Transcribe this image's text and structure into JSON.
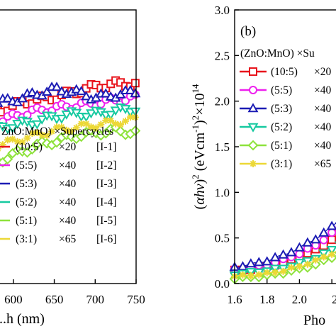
{
  "chart_data": [
    {
      "panel": "a",
      "type": "line",
      "xlabel": "...h (nm)",
      "x_ticks": [
        "600",
        "650",
        "700",
        "750"
      ],
      "x_ticks_partial": [
        "...0"
      ],
      "xlim": [
        575,
        750
      ],
      "ylim": [
        0,
        1
      ],
      "legend": {
        "header": "ZnO:MnO) ×Supercycles",
        "header_prefix": "(",
        "entries": [
          {
            "ratio": "(10:5)",
            "cycles": "×20",
            "label": "[I-1]",
            "color": "#e8141c",
            "marker": "square"
          },
          {
            "ratio": "(5:5)",
            "cycles": "×40",
            "label": "[I-2]",
            "color": "#ee1fee",
            "marker": "circle"
          },
          {
            "ratio": "(5:3)",
            "cycles": "×40",
            "label": "[I-3]",
            "color": "#1c1cb4",
            "marker": "triangle-up"
          },
          {
            "ratio": "(5:2)",
            "cycles": "×40",
            "label": "[I-4]",
            "color": "#16c9a0",
            "marker": "triangle-down"
          },
          {
            "ratio": "(5:1)",
            "cycles": "×40",
            "label": "[I-5]",
            "color": "#8ee23c",
            "marker": "diamond"
          },
          {
            "ratio": "(3:1)",
            "cycles": "×65",
            "label": "[I-6]",
            "color": "#ecd836",
            "marker": "star"
          }
        ]
      },
      "series": [
        {
          "name": "(10:5) ×20 [I-1]",
          "x": [
            575,
            600,
            625,
            650,
            675,
            700,
            725,
            750
          ],
          "y": [
            0.62,
            0.65,
            0.67,
            0.68,
            0.7,
            0.72,
            0.73,
            0.73
          ]
        },
        {
          "name": "(5:5) ×40 [I-2]",
          "x": [
            575,
            600,
            625,
            650,
            675,
            700,
            725,
            750
          ],
          "y": [
            0.59,
            0.61,
            0.63,
            0.64,
            0.65,
            0.66,
            0.67,
            0.68
          ]
        },
        {
          "name": "(5:3) ×40 [I-3]",
          "x": [
            575,
            600,
            625,
            650,
            675,
            700,
            725,
            750
          ],
          "y": [
            0.66,
            0.67,
            0.69,
            0.71,
            0.7,
            0.68,
            0.69,
            0.7
          ]
        },
        {
          "name": "(5:2) ×40 [I-4]",
          "x": [
            575,
            600,
            625,
            650,
            675,
            700,
            725,
            750
          ],
          "y": [
            0.56,
            0.58,
            0.59,
            0.61,
            0.62,
            0.62,
            0.63,
            0.64
          ]
        },
        {
          "name": "(5:1) ×40 [I-5]",
          "x": [
            575,
            600,
            625,
            650,
            675,
            700,
            725,
            750
          ],
          "y": [
            0.44,
            0.47,
            0.5,
            0.52,
            0.54,
            0.55,
            0.56,
            0.55
          ]
        },
        {
          "name": "(3:1) ×65 [I-6]",
          "x": [
            575,
            600,
            625,
            650,
            675,
            700,
            725,
            750
          ],
          "y": [
            0.5,
            0.52,
            0.54,
            0.56,
            0.57,
            0.58,
            0.59,
            0.6
          ]
        }
      ]
    },
    {
      "panel": "b",
      "panel_label": "(b)",
      "type": "line",
      "xlabel": "Pho",
      "ylabel_html": "(αhv)² (eVcm⁻¹)²×10¹⁴",
      "ylabel_parts": {
        "a": "(",
        "alpha": "α",
        "hv": "hν",
        "b": ")",
        "sup2": "2",
        "units": " (eVcm",
        "minus1": "-1",
        "c": ")",
        "sup2b": "2",
        "times": "×10",
        "exp": "14"
      },
      "x_ticks": [
        "1.6",
        "1.8",
        "2.0",
        "2.2"
      ],
      "y_ticks": [
        "0.0",
        "0.5",
        "1.0",
        "1.5",
        "2.0",
        "2.5",
        "3.0"
      ],
      "xlim": [
        1.6,
        2.3
      ],
      "ylim": [
        0,
        3.0
      ],
      "legend": {
        "header": "(ZnO:MnO) ×Su",
        "entries": [
          {
            "ratio": "(10:5)",
            "cycles": "×20",
            "color": "#e8141c",
            "marker": "square"
          },
          {
            "ratio": "(5:5)",
            "cycles": "×40",
            "color": "#ee1fee",
            "marker": "circle"
          },
          {
            "ratio": "(5:3)",
            "cycles": "×40",
            "color": "#1c1cb4",
            "marker": "triangle-up"
          },
          {
            "ratio": "(5:2)",
            "cycles": "×40",
            "color": "#16c9a0",
            "marker": "triangle-down"
          },
          {
            "ratio": "(5:1)",
            "cycles": "×40",
            "color": "#8ee23c",
            "marker": "diamond"
          },
          {
            "ratio": "(3:1)",
            "cycles": "×65",
            "color": "#ecd836",
            "marker": "star"
          }
        ]
      },
      "series": [
        {
          "name": "(10:5) ×20",
          "x": [
            1.6,
            1.7,
            1.8,
            1.9,
            2.0,
            2.1,
            2.2,
            2.25
          ],
          "y": [
            0.14,
            0.16,
            0.19,
            0.23,
            0.29,
            0.37,
            0.48,
            0.55
          ]
        },
        {
          "name": "(5:5) ×40",
          "x": [
            1.6,
            1.7,
            1.8,
            1.9,
            2.0,
            2.1,
            2.2,
            2.25
          ],
          "y": [
            0.15,
            0.17,
            0.21,
            0.26,
            0.33,
            0.42,
            0.55,
            0.62
          ]
        },
        {
          "name": "(5:3) ×40",
          "x": [
            1.6,
            1.7,
            1.8,
            1.9,
            2.0,
            2.1,
            2.2,
            2.25
          ],
          "y": [
            0.18,
            0.21,
            0.25,
            0.31,
            0.39,
            0.49,
            0.62,
            0.7
          ]
        },
        {
          "name": "(5:2) ×40",
          "x": [
            1.6,
            1.7,
            1.8,
            1.9,
            2.0,
            2.1,
            2.2,
            2.25
          ],
          "y": [
            0.1,
            0.12,
            0.14,
            0.17,
            0.22,
            0.28,
            0.37,
            0.43
          ]
        },
        {
          "name": "(5:1) ×40",
          "x": [
            1.6,
            1.7,
            1.8,
            1.9,
            2.0,
            2.1,
            2.2,
            2.25
          ],
          "y": [
            0.06,
            0.07,
            0.09,
            0.12,
            0.16,
            0.21,
            0.29,
            0.34
          ]
        },
        {
          "name": "(3:1) ×65",
          "x": [
            1.6,
            1.7,
            1.8,
            1.9,
            2.0,
            2.1,
            2.2,
            2.25
          ],
          "y": [
            0.08,
            0.09,
            0.11,
            0.14,
            0.19,
            0.25,
            0.33,
            0.38
          ]
        }
      ]
    }
  ]
}
